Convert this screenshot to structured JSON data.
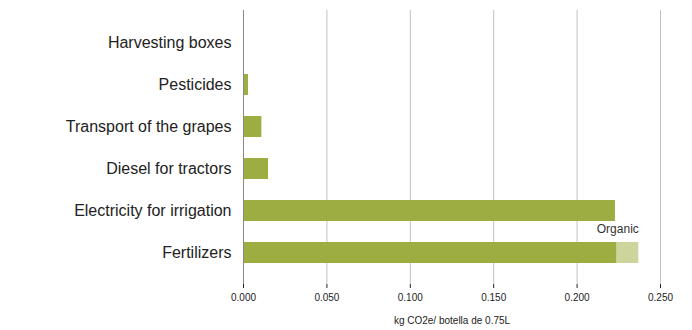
{
  "chart_data": {
    "type": "bar",
    "orientation": "horizontal",
    "stacked": true,
    "categories": [
      "Harvesting boxes",
      "Pesticides",
      "Transport of the grapes",
      "Diesel for tractors",
      "Electricity for irrigation",
      "Fertilizers"
    ],
    "series": [
      {
        "color": "#9dad42",
        "values": [
          0,
          0.003,
          0.011,
          0.015,
          0.223,
          0.224
        ]
      },
      {
        "name": "Organic",
        "color": "#cdd59c",
        "values": [
          null,
          null,
          null,
          null,
          null,
          0.013
        ]
      }
    ],
    "xlabel": "kg CO2e/ botella de 0.75L",
    "xlim": [
      0,
      0.25
    ],
    "xticks": [
      {
        "value": 0,
        "label": "0.000"
      },
      {
        "value": 0.05,
        "label": "0.050"
      },
      {
        "value": 0.1,
        "label": "0.100"
      },
      {
        "value": 0.15,
        "label": "0.150"
      },
      {
        "value": 0.2,
        "label": "0.200"
      },
      {
        "value": 0.25,
        "label": "0.250"
      }
    ],
    "grid": true,
    "data_labels": false
  }
}
